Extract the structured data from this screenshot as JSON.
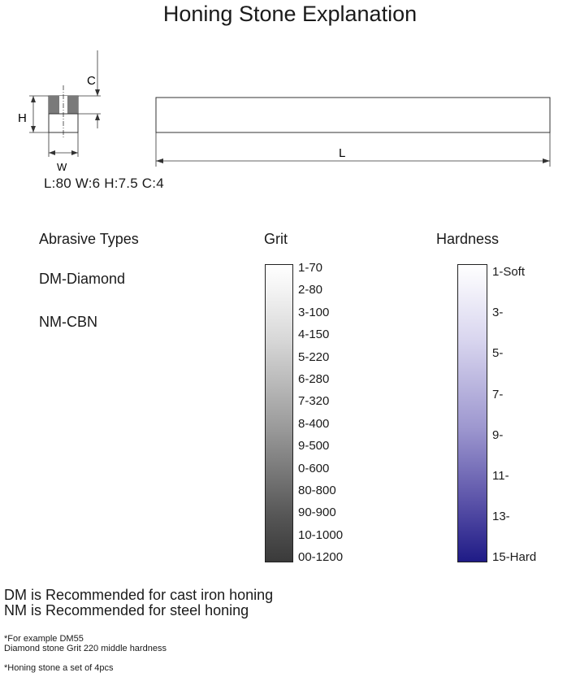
{
  "title": "Honing Stone Explanation",
  "diagram": {
    "label_c": "C",
    "label_h": "H",
    "label_w": "W",
    "label_l": "L"
  },
  "dimensions_text": "L:80  W:6  H:7.5  C:4",
  "abrasive": {
    "heading": "Abrasive Types",
    "items": [
      "DM-Diamond",
      "NM-CBN"
    ]
  },
  "grit": {
    "heading": "Grit",
    "ticks": [
      "1-70",
      "2-80",
      "3-100",
      "4-150",
      "5-220",
      "6-280",
      "7-320",
      "8-400",
      "9-500",
      "0-600",
      "80-800",
      "90-900",
      "10-1000",
      "00-1200"
    ]
  },
  "hardness": {
    "heading": "Hardness",
    "ticks": [
      "1-Soft",
      "3-",
      "5-",
      "7-",
      "9-",
      "11-",
      "13-",
      "15-Hard"
    ],
    "colors": {
      "soft": "#ffffff",
      "hard": "#1f1b86"
    }
  },
  "notes": {
    "dm": "DM is Recommended for cast iron honing",
    "nm": "NM is Recommended for steel honing",
    "example_1": "*For example  DM55",
    "example_2": "Diamond stone Grit 220 middle hardness",
    "set": "*Honing stone a set of 4pcs"
  }
}
